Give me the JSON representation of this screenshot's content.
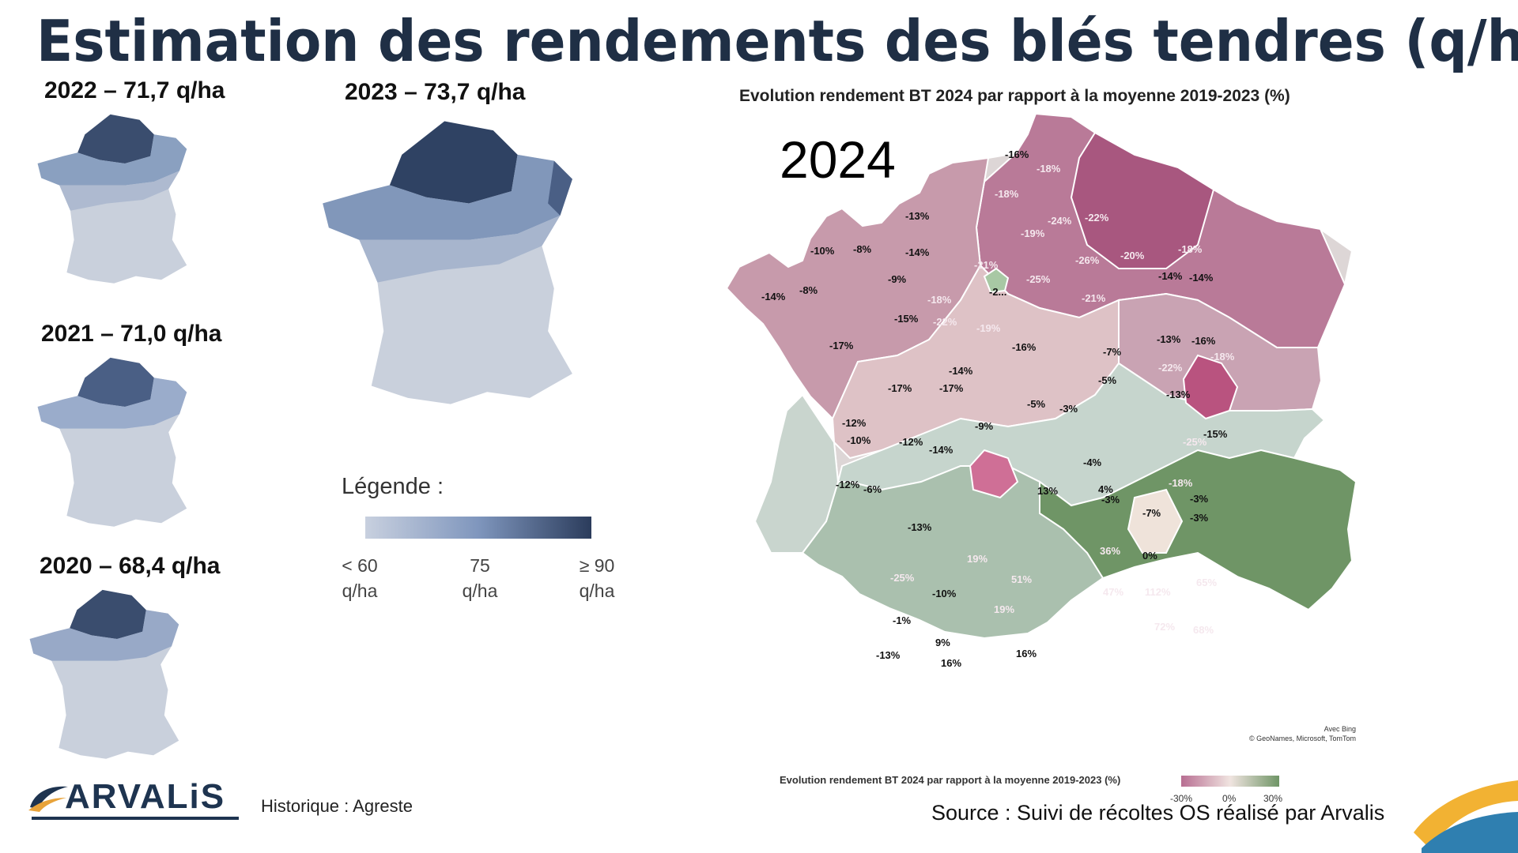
{
  "title": "Estimation des rendements des blés tendres (q/ha)",
  "mini_maps": [
    {
      "label": "2022 – 71,7 q/ha"
    },
    {
      "label": "2023 – 73,7 q/ha"
    },
    {
      "label": "2021 – 71,0 q/ha"
    },
    {
      "label": "2020 – 68,4 q/ha"
    }
  ],
  "legend": {
    "title": "Légende :",
    "stops": [
      {
        "value": "< 60",
        "unit": "q/ha"
      },
      {
        "value": "75",
        "unit": "q/ha"
      },
      {
        "value": "≥ 90",
        "unit": "q/ha"
      }
    ],
    "gradient": [
      "#c8d0df",
      "#7f96bd",
      "#2b3c5c"
    ]
  },
  "map2024": {
    "chart_title": "Evolution rendement BT 2024 par rapport à la moyenne 2019-2023 (%)",
    "year": "2024",
    "credit_line1": "Avec Bing",
    "credit_line2": "© GeoNames, Microsoft, TomTom",
    "bottom_caption": "Evolution rendement BT 2024 par rapport à la moyenne 2019-2023 (%)",
    "scale_labels": [
      "-30%",
      "0%",
      "30%"
    ],
    "scale_colors": [
      "#b86e92",
      "#f0e4e0",
      "#6f9566"
    ],
    "values": [
      "-16%",
      "-18%",
      "-18%",
      "-13%",
      "-24%",
      "-22%",
      "-19%",
      "-10%",
      "-8%",
      "-14%",
      "-21%",
      "-26%",
      "-20%",
      "-18%",
      "-14%",
      "-9%",
      "-25%",
      "-14%",
      "-8%",
      "-2...",
      "-14%",
      "-18%",
      "-21%",
      "-15%",
      "-22%",
      "-19%",
      "-16%",
      "-7%",
      "-13%",
      "-17%",
      "-16%",
      "-18%",
      "-14%",
      "-22%",
      "-17%",
      "-17%",
      "-12%",
      "-5%",
      "-13%",
      "-5%",
      "-3%",
      "-25%",
      "-12%",
      "-10%",
      "-14%",
      "-9%",
      "-15%",
      "-4%",
      "-18%",
      "-3%",
      "-12%",
      "-6%",
      "13%",
      "4%",
      "-3%",
      "-3%",
      "-7%",
      "-13%",
      "36%",
      "0%",
      "19%",
      "51%",
      "65%",
      "-25%",
      "-10%",
      "47%",
      "112%",
      "19%",
      "-1%",
      "72%",
      "68%",
      "9%",
      "16%",
      "-13%",
      "16%"
    ]
  },
  "logo": {
    "text": "ARVALiS",
    "brand_color": "#1e3450",
    "accent_color": "#e8a33a"
  },
  "historique": "Historique : Agreste",
  "source": "Source : Suivi de récoltes OS réalisé par Arvalis"
}
